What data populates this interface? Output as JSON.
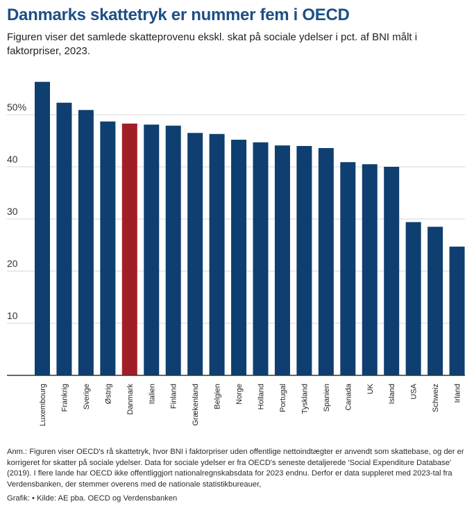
{
  "title": "Danmarks skattetryk er nummer fem i OECD",
  "subtitle": "Figuren viser det samlede skatteprovenu ekskl. skat på sociale ydelser i pct. af BNI målt i faktorpriser, 2023.",
  "chart_data": {
    "type": "bar",
    "categories": [
      "Luxembourg",
      "Frankrig",
      "Sverige",
      "Østrig",
      "Danmark",
      "Italien",
      "Finland",
      "Grækenland",
      "Belgien",
      "Norge",
      "Holland",
      "Portugal",
      "Tyskland",
      "Spanien",
      "Canada",
      "UK",
      "Island",
      "USA",
      "Schweiz",
      "Irland"
    ],
    "values": [
      56.3,
      52.3,
      50.9,
      48.7,
      48.3,
      48.1,
      47.9,
      46.5,
      46.3,
      45.2,
      44.7,
      44.1,
      44.0,
      43.6,
      40.9,
      40.5,
      40.0,
      29.4,
      28.5,
      24.7
    ],
    "highlight": "Danmark",
    "colors": {
      "default": "#0e3f70",
      "highlight": "#a21e26",
      "grid": "#d6d6d6",
      "axis": "#333333"
    },
    "ylim": [
      0,
      60
    ],
    "yticks": [
      {
        "value": 10,
        "label": "10"
      },
      {
        "value": 20,
        "label": "20"
      },
      {
        "value": 30,
        "label": "30"
      },
      {
        "value": 40,
        "label": "40"
      },
      {
        "value": 50,
        "label": "50%"
      }
    ],
    "xlabel": "",
    "ylabel": ""
  },
  "note": "Anm.: Figuren viser OECD's rå skattetryk, hvor BNI i faktorpriser uden offentlige nettoindtægter er anvendt som skattebase, og der er korrigeret for skatter på sociale ydelser. Data for sociale ydelser er fra OECD's seneste detaljerede 'Social Expenditure Database' (2019). I flere lande har OECD ikke offentliggjort nationalregnskabsdata for 2023 endnu. Derfor er data suppleret med 2023-tal fra Verdensbanken, der stemmer overens med de nationale statistikbureauer,",
  "source": "Grafik:  • Kilde: AE pba. OECD og Verdensbanken"
}
